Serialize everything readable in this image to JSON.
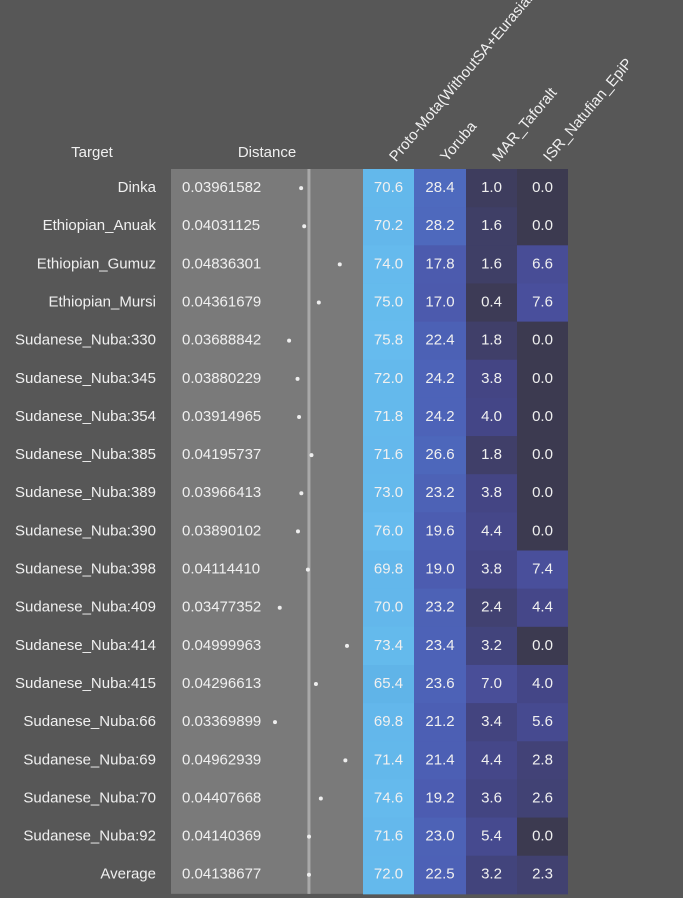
{
  "table": {
    "header": [
      "Target",
      "Distance",
      "Proto-Mota(WithoutSA+Eurasian)",
      "Yoruba",
      "MAR_Taforalt",
      "ISR_Natufian_EpiP"
    ],
    "rows": [
      [
        "Dinka",
        "0.03961582",
        "70.6",
        "28.4",
        "1.0",
        "0.0"
      ],
      [
        "Ethiopian_Anuak",
        "0.04031125",
        "70.2",
        "28.2",
        "1.6",
        "0.0"
      ],
      [
        "Ethiopian_Gumuz",
        "0.04836301",
        "74.0",
        "17.8",
        "1.6",
        "6.6"
      ],
      [
        "Ethiopian_Mursi",
        "0.04361679",
        "75.0",
        "17.0",
        "0.4",
        "7.6"
      ],
      [
        "Sudanese_Nuba:330",
        "0.03688842",
        "75.8",
        "22.4",
        "1.8",
        "0.0"
      ],
      [
        "Sudanese_Nuba:345",
        "0.03880229",
        "72.0",
        "24.2",
        "3.8",
        "0.0"
      ],
      [
        "Sudanese_Nuba:354",
        "0.03914965",
        "71.8",
        "24.2",
        "4.0",
        "0.0"
      ],
      [
        "Sudanese_Nuba:385",
        "0.04195737",
        "71.6",
        "26.6",
        "1.8",
        "0.0"
      ],
      [
        "Sudanese_Nuba:389",
        "0.03966413",
        "73.0",
        "23.2",
        "3.8",
        "0.0"
      ],
      [
        "Sudanese_Nuba:390",
        "0.03890102",
        "76.0",
        "19.6",
        "4.4",
        "0.0"
      ],
      [
        "Sudanese_Nuba:398",
        "0.04114410",
        "69.8",
        "19.0",
        "3.8",
        "7.4"
      ],
      [
        "Sudanese_Nuba:409",
        "0.03477352",
        "70.0",
        "23.2",
        "2.4",
        "4.4"
      ],
      [
        "Sudanese_Nuba:414",
        "0.04999963",
        "73.4",
        "23.4",
        "3.2",
        "0.0"
      ],
      [
        "Sudanese_Nuba:415",
        "0.04296613",
        "65.4",
        "23.6",
        "7.0",
        "4.0"
      ],
      [
        "Sudanese_Nuba:66",
        "0.03369899",
        "69.8",
        "21.2",
        "3.4",
        "5.6"
      ],
      [
        "Sudanese_Nuba:69",
        "0.04962939",
        "71.4",
        "21.4",
        "4.4",
        "2.8"
      ],
      [
        "Sudanese_Nuba:70",
        "0.04407668",
        "74.6",
        "19.2",
        "3.6",
        "2.6"
      ],
      [
        "Sudanese_Nuba:92",
        "0.04140369",
        "71.6",
        "23.0",
        "5.4",
        "0.0"
      ],
      [
        "Average",
        "0.04138677",
        "72.0",
        "22.5",
        "3.2",
        "2.3"
      ]
    ]
  }
}
